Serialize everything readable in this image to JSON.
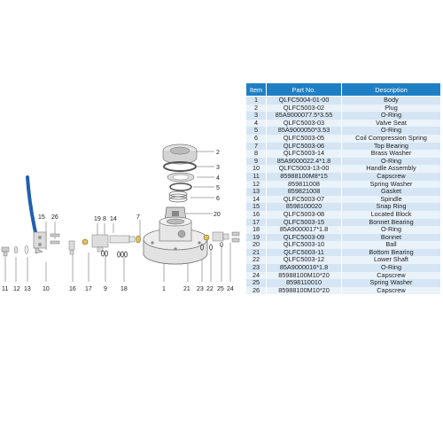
{
  "table": {
    "headers": [
      "Item",
      "Part No.",
      "Description"
    ],
    "rows": [
      {
        "item": "1",
        "part": "QLFC5004-01-00",
        "desc": "Body"
      },
      {
        "item": "2",
        "part": "QLFC5003-02",
        "desc": "Plug"
      },
      {
        "item": "3",
        "part": "85A9000077.5*3.55",
        "desc": "O-Ring"
      },
      {
        "item": "4",
        "part": "QLFC5003-03",
        "desc": "Valve Seat"
      },
      {
        "item": "5",
        "part": "85A9000050*3.53",
        "desc": "O-Ring"
      },
      {
        "item": "6",
        "part": "QLFC5003-05",
        "desc": "Coil Compression Spring"
      },
      {
        "item": "7",
        "part": "QLFC5003-06",
        "desc": "Top Bearing"
      },
      {
        "item": "8",
        "part": "QLFC5003-14",
        "desc": "Brass Washer"
      },
      {
        "item": "9",
        "part": "85A9000022.4*1.8",
        "desc": "O-Ring"
      },
      {
        "item": "10",
        "part": "QLFC5003-13-00",
        "desc": "Handle Assembly"
      },
      {
        "item": "11",
        "part": "85988100M8*15",
        "desc": "Capscrew"
      },
      {
        "item": "12",
        "part": "859811008",
        "desc": "Spring Washer"
      },
      {
        "item": "13",
        "part": "859821008",
        "desc": "Gasket"
      },
      {
        "item": "14",
        "part": "QLFC5003-07",
        "desc": "Spindle"
      },
      {
        "item": "15",
        "part": "8598100020",
        "desc": "Snap Ring"
      },
      {
        "item": "16",
        "part": "QLFC5003-08",
        "desc": "Located Block"
      },
      {
        "item": "17",
        "part": "QLFC5003-15",
        "desc": "Bonnet Bearing"
      },
      {
        "item": "18",
        "part": "85A9000017*1.8",
        "desc": "O-Ring"
      },
      {
        "item": "19",
        "part": "QLFC5003-09",
        "desc": "Bonnet"
      },
      {
        "item": "20",
        "part": "QLFC5003-10",
        "desc": "Ball"
      },
      {
        "item": "21",
        "part": "QLFC5003-11",
        "desc": "Bottom Bearing"
      },
      {
        "item": "22",
        "part": "QLFC5003-12",
        "desc": "Lower Shaft"
      },
      {
        "item": "23",
        "part": "85A9000016*1.8",
        "desc": "O-Ring"
      },
      {
        "item": "24",
        "part": "85988100M10*20",
        "desc": "Capscrew"
      },
      {
        "item": "25",
        "part": "8598110010",
        "desc": "Spring Washer"
      },
      {
        "item": "26",
        "part": "85988100M10*20",
        "desc": "Capscrew"
      }
    ]
  },
  "callouts": {
    "c1": "1",
    "c2": "2",
    "c3": "3",
    "c4": "4",
    "c5": "5",
    "c6": "6",
    "c7": "7",
    "c8": "8",
    "c9": "9",
    "c10": "10",
    "c11": "11",
    "c12": "12",
    "c13": "13",
    "c14": "14",
    "c15": "15",
    "c16": "16",
    "c17": "17",
    "c18": "18",
    "c19": "19",
    "c20": "20",
    "c21": "21",
    "c22": "22",
    "c23": "23",
    "c24": "24",
    "c25": "25",
    "c26": "26"
  },
  "colors": {
    "header_bg": "#1f7fc4",
    "row_odd": "#d5e5f3",
    "row_even": "#eaf2fa",
    "handle_blue": "#1f5fae"
  }
}
